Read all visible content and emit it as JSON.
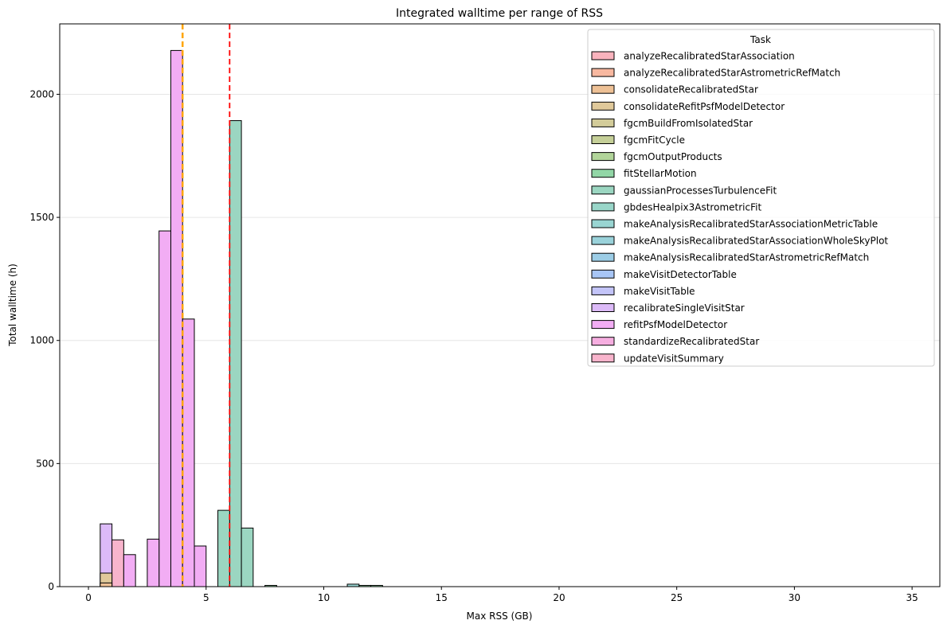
{
  "chart_data": {
    "type": "bar",
    "title": "Integrated walltime per range of RSS",
    "xlabel": "Max RSS (GB)",
    "ylabel": "Total walltime (h)",
    "xlim": [
      -1.22,
      36.18
    ],
    "ylim": [
      0,
      2286
    ],
    "xticks": [
      0,
      5,
      10,
      15,
      20,
      25,
      30,
      35
    ],
    "yticks": [
      0,
      500,
      1000,
      1500,
      2000
    ],
    "grid": "y",
    "legend": {
      "title": "Task",
      "placement": "top-right",
      "entries": [
        {
          "name": "analyzeRecalibratedStarAssociation",
          "color": "#f9b3bd"
        },
        {
          "name": "analyzeRecalibratedStarAstrometricRefMatch",
          "color": "#f8b8a0"
        },
        {
          "name": "consolidateRecalibratedStar",
          "color": "#eec196"
        },
        {
          "name": "consolidateRefitPsfModelDetector",
          "color": "#e0c99a"
        },
        {
          "name": "fgcmBuildFromIsolatedStar",
          "color": "#d3cc9a"
        },
        {
          "name": "fgcmFitCycle",
          "color": "#c5cf98"
        },
        {
          "name": "fgcmOutputProducts",
          "color": "#b2d59a"
        },
        {
          "name": "fitStellarMotion",
          "color": "#92d6a6"
        },
        {
          "name": "gaussianProcessesTurbulenceFit",
          "color": "#9bd6c1"
        },
        {
          "name": "gbdesHealpix3AstrometricFit",
          "color": "#99d6c9"
        },
        {
          "name": "makeAnalysisRecalibratedStarAssociationMetricTable",
          "color": "#99d5d2"
        },
        {
          "name": "makeAnalysisRecalibratedStarAssociationWholeSkyPlot",
          "color": "#9ad2da"
        },
        {
          "name": "makeAnalysisRecalibratedStarAstrometricRefMatch",
          "color": "#9ccde6"
        },
        {
          "name": "makeVisitDetectorTable",
          "color": "#a8c6f6"
        },
        {
          "name": "makeVisitTable",
          "color": "#c3c4f8"
        },
        {
          "name": "recalibrateSingleVisitStar",
          "color": "#dcbaf8"
        },
        {
          "name": "refitPsfModelDetector",
          "color": "#f2adf4"
        },
        {
          "name": "standardizeRecalibratedStar",
          "color": "#f6aee0"
        },
        {
          "name": "updateVisitSummary",
          "color": "#f8b4cc"
        }
      ]
    },
    "bars": [
      {
        "task": "recalibrateSingleVisitStar",
        "x0": 0.5,
        "x1": 1.0,
        "value": 255
      },
      {
        "task": "consolidateRefitPsfModelDetector",
        "x0": 0.5,
        "x1": 1.0,
        "value": 55
      },
      {
        "task": "consolidateRecalibratedStar",
        "x0": 0.5,
        "x1": 1.0,
        "value": 15
      },
      {
        "task": "updateVisitSummary",
        "x0": 1.0,
        "x1": 1.5,
        "value": 190
      },
      {
        "task": "refitPsfModelDetector",
        "x0": 1.5,
        "x1": 2.0,
        "value": 130
      },
      {
        "task": "refitPsfModelDetector",
        "x0": 2.5,
        "x1": 3.0,
        "value": 193
      },
      {
        "task": "refitPsfModelDetector",
        "x0": 3.0,
        "x1": 3.5,
        "value": 1445
      },
      {
        "task": "refitPsfModelDetector",
        "x0": 3.5,
        "x1": 4.0,
        "value": 2178
      },
      {
        "task": "refitPsfModelDetector",
        "x0": 4.0,
        "x1": 4.5,
        "value": 1087
      },
      {
        "task": "refitPsfModelDetector",
        "x0": 4.5,
        "x1": 5.0,
        "value": 165
      },
      {
        "task": "gaussianProcessesTurbulenceFit",
        "x0": 5.5,
        "x1": 6.0,
        "value": 310
      },
      {
        "task": "gaussianProcessesTurbulenceFit",
        "x0": 6.0,
        "x1": 6.5,
        "value": 1893
      },
      {
        "task": "gaussianProcessesTurbulenceFit",
        "x0": 6.5,
        "x1": 7.0,
        "value": 238
      },
      {
        "task": "fitStellarMotion",
        "x0": 7.5,
        "x1": 8.0,
        "value": 5
      },
      {
        "task": "makeAnalysisRecalibratedStarAssociationMetricTable",
        "x0": 11.0,
        "x1": 11.5,
        "value": 10
      },
      {
        "task": "fitStellarMotion",
        "x0": 11.5,
        "x1": 12.0,
        "value": 5
      },
      {
        "task": "fitStellarMotion",
        "x0": 12.0,
        "x1": 12.5,
        "value": 5
      }
    ],
    "vlines": [
      {
        "x": 4.0,
        "color": "#ffa500",
        "style": "dashed"
      },
      {
        "x": 6.0,
        "color": "#ff0000",
        "style": "dashed"
      }
    ]
  }
}
